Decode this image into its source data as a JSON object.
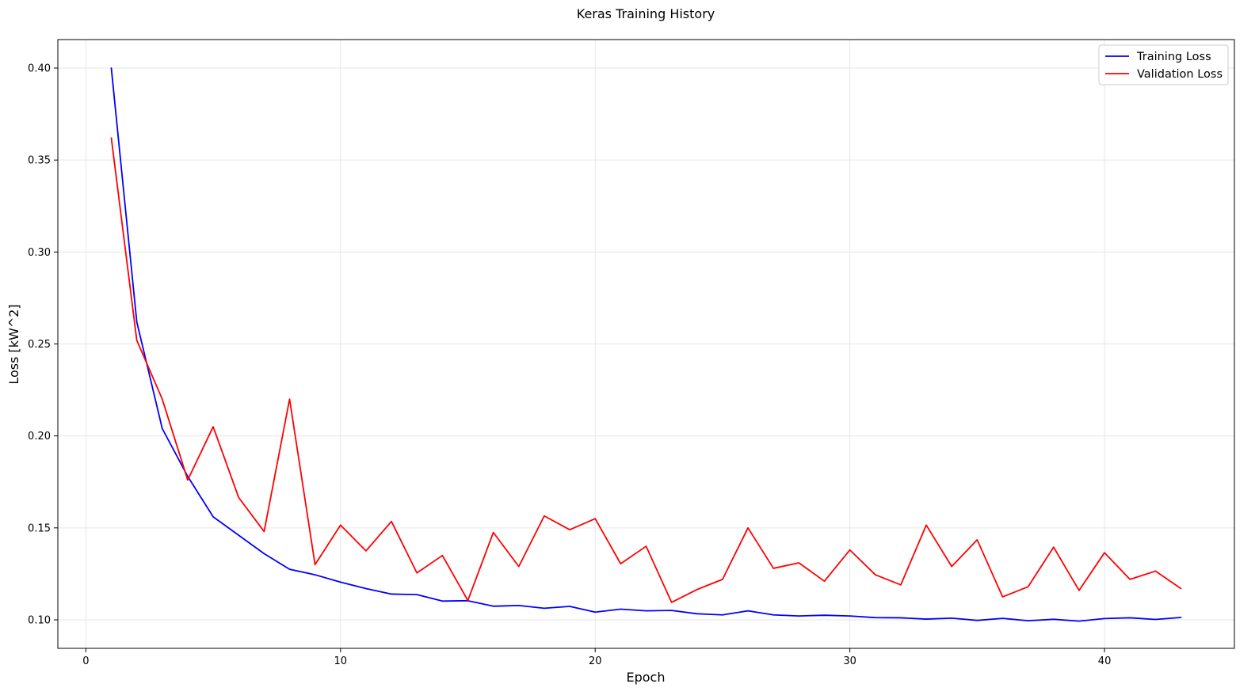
{
  "chart_data": {
    "type": "line",
    "title": "Keras Training History",
    "xlabel": "Epoch",
    "ylabel": "Loss [kW^2]",
    "xlim": [
      -1.1,
      45.1
    ],
    "ylim": [
      0.0845,
      0.4155
    ],
    "xticks": [
      0,
      10,
      20,
      30,
      40
    ],
    "yticks": [
      0.1,
      0.15,
      0.2,
      0.25,
      0.3,
      0.35,
      0.4
    ],
    "xtick_labels": [
      "0",
      "10",
      "20",
      "30",
      "40"
    ],
    "ytick_labels": [
      "0.10",
      "0.15",
      "0.20",
      "0.25",
      "0.30",
      "0.35",
      "0.40"
    ],
    "grid": true,
    "legend_position": "top-right",
    "x": [
      1,
      2,
      3,
      4,
      5,
      6,
      7,
      8,
      9,
      10,
      11,
      12,
      13,
      14,
      15,
      16,
      17,
      18,
      19,
      20,
      21,
      22,
      23,
      24,
      25,
      26,
      27,
      28,
      29,
      30,
      31,
      32,
      33,
      34,
      35,
      36,
      37,
      38,
      39,
      40,
      41,
      42,
      43
    ],
    "series": [
      {
        "name": "Training Loss",
        "color": "#0000ff",
        "values": [
          0.4,
          0.262,
          0.204,
          0.178,
          0.156,
          0.146,
          0.136,
          0.1275,
          0.1245,
          0.1205,
          0.117,
          0.114,
          0.1137,
          0.1102,
          0.1104,
          0.1074,
          0.1078,
          0.1063,
          0.1073,
          0.1042,
          0.1058,
          0.1049,
          0.1051,
          0.1033,
          0.1027,
          0.1049,
          0.1027,
          0.1021,
          0.1025,
          0.1021,
          0.1012,
          0.1011,
          0.1004,
          0.1009,
          0.0997,
          0.1008,
          0.0995,
          0.1003,
          0.0993,
          0.1007,
          0.1011,
          0.1002,
          0.1013
        ]
      },
      {
        "name": "Validation Loss",
        "color": "#ff0000",
        "values": [
          0.362,
          0.252,
          0.22,
          0.176,
          0.205,
          0.1665,
          0.148,
          0.22,
          0.13,
          0.1515,
          0.1375,
          0.1535,
          0.1255,
          0.135,
          0.1105,
          0.1475,
          0.129,
          0.1565,
          0.149,
          0.155,
          0.1305,
          0.14,
          0.1095,
          0.1165,
          0.122,
          0.15,
          0.128,
          0.131,
          0.121,
          0.138,
          0.1245,
          0.119,
          0.1515,
          0.129,
          0.1435,
          0.1125,
          0.118,
          0.1395,
          0.116,
          0.1365,
          0.122,
          0.1265,
          0.117
        ]
      }
    ]
  }
}
